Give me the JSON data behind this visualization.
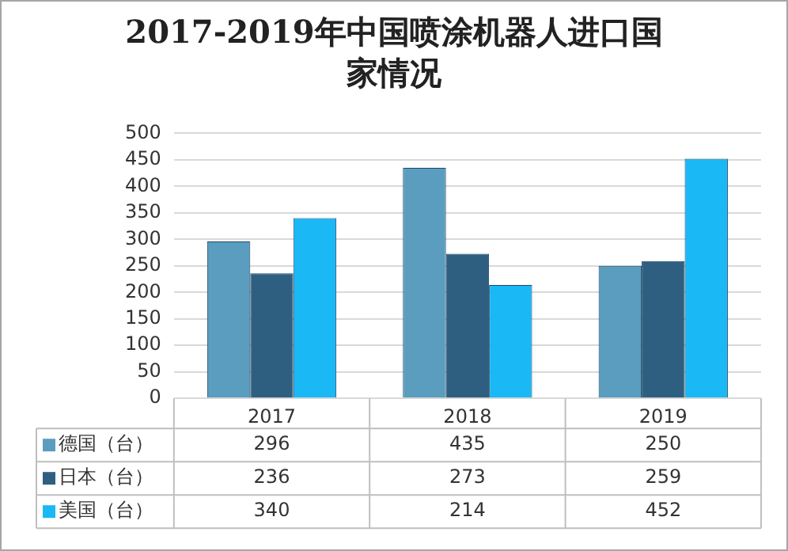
{
  "chart_data": {
    "type": "bar",
    "title": "2017-2019年中国喷涂机器人进口国家情况",
    "categories": [
      "2017",
      "2018",
      "2019"
    ],
    "series": [
      {
        "name": "德国（台）",
        "color": "#5b9dbf",
        "values": [
          296,
          435,
          250
        ]
      },
      {
        "name": "日本（台）",
        "color": "#2f5f80",
        "values": [
          236,
          273,
          259
        ]
      },
      {
        "name": "美国（台）",
        "color": "#1ab8f5",
        "values": [
          340,
          214,
          452
        ]
      }
    ],
    "ylim": [
      0,
      500
    ],
    "yticks": [
      0,
      50,
      100,
      150,
      200,
      250,
      300,
      350,
      400,
      450,
      500
    ],
    "grid": "y",
    "legend": "bottom",
    "data_labels": true
  }
}
